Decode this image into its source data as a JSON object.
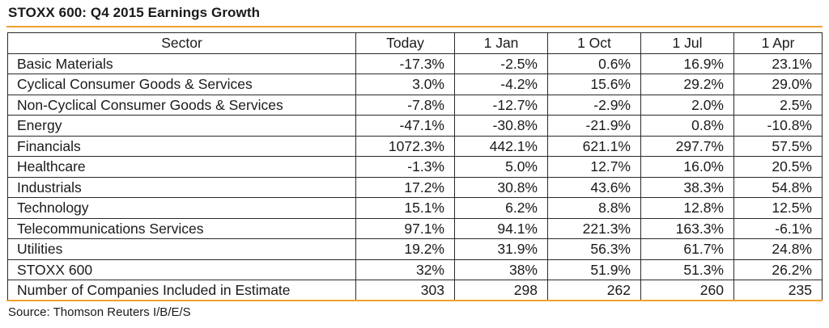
{
  "title": "STOXX 600: Q4 2015 Earnings Growth",
  "source": "Source: Thomson Reuters I/B/E/S",
  "colors": {
    "accent_rule": "#f0a030",
    "text": "#1a1a1a",
    "border": "#2a2a2a"
  },
  "chart_data": {
    "type": "table",
    "title": "STOXX 600: Q4 2015 Earnings Growth",
    "columns": [
      "Sector",
      "Today",
      "1 Jan",
      "1 Oct",
      "1 Jul",
      "1 Apr"
    ],
    "rows": [
      [
        "Basic Materials",
        "-17.3%",
        "-2.5%",
        "0.6%",
        "16.9%",
        "23.1%"
      ],
      [
        "Cyclical Consumer Goods & Services",
        "3.0%",
        "-4.2%",
        "15.6%",
        "29.2%",
        "29.0%"
      ],
      [
        "Non-Cyclical Consumer Goods & Services",
        "-7.8%",
        "-12.7%",
        "-2.9%",
        "2.0%",
        "2.5%"
      ],
      [
        "Energy",
        "-47.1%",
        "-30.8%",
        "-21.9%",
        "0.8%",
        "-10.8%"
      ],
      [
        "Financials",
        "1072.3%",
        "442.1%",
        "621.1%",
        "297.7%",
        "57.5%"
      ],
      [
        "Healthcare",
        "-1.3%",
        "5.0%",
        "12.7%",
        "16.0%",
        "20.5%"
      ],
      [
        "Industrials",
        "17.2%",
        "30.8%",
        "43.6%",
        "38.3%",
        "54.8%"
      ],
      [
        "Technology",
        "15.1%",
        "6.2%",
        "8.8%",
        "12.8%",
        "12.5%"
      ],
      [
        "Telecommunications Services",
        "97.1%",
        "94.1%",
        "221.3%",
        "163.3%",
        "-6.1%"
      ],
      [
        "Utilities",
        "19.2%",
        "31.9%",
        "56.3%",
        "61.7%",
        "24.8%"
      ],
      [
        "STOXX 600",
        "32%",
        "38%",
        "51.9%",
        "51.3%",
        "26.2%"
      ],
      [
        "Number of Companies Included in Estimate",
        "303",
        "298",
        "262",
        "260",
        "235"
      ]
    ]
  }
}
